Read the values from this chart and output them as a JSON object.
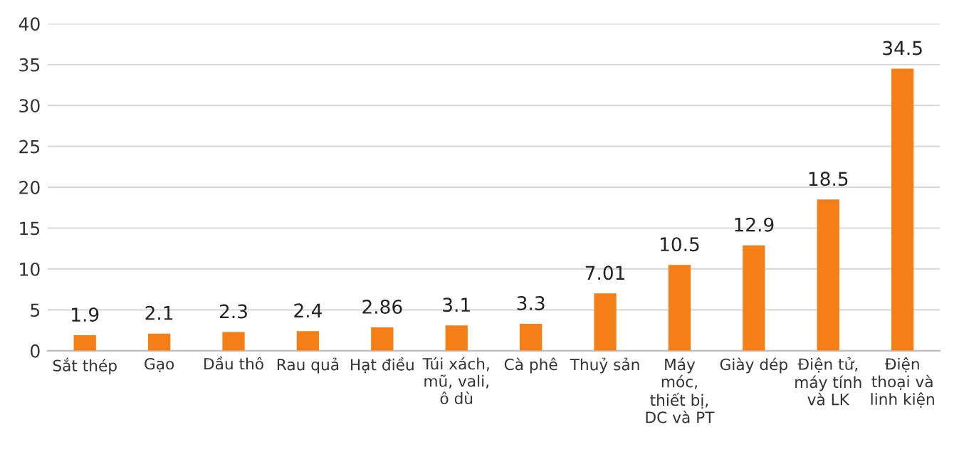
{
  "chart_data": {
    "type": "bar",
    "categories": [
      "Sắt thép",
      "Gạo",
      "Dầu thô",
      "Rau quả",
      "Hạt điều",
      "Túi xách,\nmũ, vali,\nô dù",
      "Cà phê",
      "Thuỷ sản",
      "Máy\nmóc,\nthiết bị,\nDC và PT",
      "Giày dép",
      "Điện tử,\nmáy tính\nvà LK",
      "Điện\nthoại và\nlinh kiện"
    ],
    "values": [
      1.9,
      2.1,
      2.3,
      2.4,
      2.86,
      3.1,
      3.3,
      7.01,
      10.5,
      12.9,
      18.5,
      34.5
    ],
    "color": "#f57f17",
    "ylim": [
      0,
      40
    ],
    "yticks": [
      0,
      5,
      10,
      15,
      20,
      25,
      30,
      35,
      40
    ],
    "grid": "y",
    "data_labels": true,
    "legend": false
  }
}
